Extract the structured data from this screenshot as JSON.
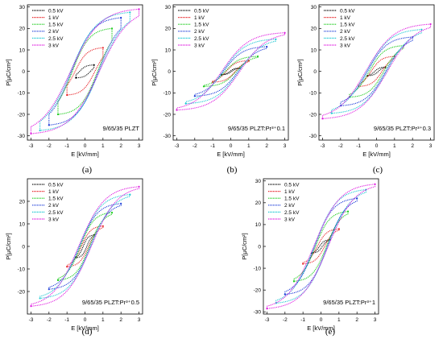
{
  "figure": {
    "panel_letters": [
      "(a)",
      "(b)",
      "(c)",
      "(d)",
      "(e)"
    ]
  },
  "colors": {
    "0.5 kV": "#111111",
    "1 kV": "#e8282c",
    "1.5 kV": "#1fcc1f",
    "2 kV": "#1f3fd8",
    "2.5 kV": "#22c9d4",
    "3 kV": "#e020e0"
  },
  "chart_data": [
    {
      "type": "line",
      "annotation": "9/65/35 PLZT",
      "xlabel": "E [kV/mm]",
      "ylabel": "P[μC/cm²]",
      "xlim": [
        -3.2,
        3.2
      ],
      "ylim": [
        -32,
        31
      ],
      "xticks": [
        -3,
        -2,
        -1,
        0,
        1,
        2,
        3
      ],
      "yticks": [
        -30,
        -20,
        -10,
        0,
        10,
        20,
        30
      ],
      "legend_position": "top-left",
      "series": [
        {
          "name": "0.5 kV",
          "Emax": 0.5,
          "Pmax": 3,
          "Pr": 2,
          "Ec": 0.3
        },
        {
          "name": "1 kV",
          "Emax": 1,
          "Pmax": 11,
          "Pr": 9,
          "Ec": 0.55
        },
        {
          "name": "1.5 kV",
          "Emax": 1.5,
          "Pmax": 20,
          "Pr": 16,
          "Ec": 0.7
        },
        {
          "name": "2 kV",
          "Emax": 2,
          "Pmax": 25,
          "Pr": 22,
          "Ec": 0.75
        },
        {
          "name": "2.5 kV",
          "Emax": 2.5,
          "Pmax": 27.5,
          "Pr": 24,
          "Ec": 0.8
        },
        {
          "name": "3 kV",
          "Emax": 3,
          "Pmax": 29,
          "Pr": 25,
          "Ec": 0.8
        }
      ]
    },
    {
      "type": "line",
      "annotation": "9/65/35 PLZT:Pr³⁺0.1",
      "xlabel": "E [kV/mm]",
      "ylabel": "P[μC/cm²]",
      "xlim": [
        -3.2,
        3.2
      ],
      "ylim": [
        -32,
        31
      ],
      "xticks": [
        -3,
        -2,
        -1,
        0,
        1,
        2,
        3
      ],
      "yticks": [
        -30,
        -20,
        -10,
        0,
        10,
        20,
        30
      ],
      "legend_position": "top-left",
      "series": [
        {
          "name": "0.5 kV",
          "Emax": 0.5,
          "Pmax": 1.5,
          "Pr": 0.3,
          "Ec": 0.05
        },
        {
          "name": "1 kV",
          "Emax": 1,
          "Pmax": 5,
          "Pr": 2,
          "Ec": 0.25
        },
        {
          "name": "1.5 kV",
          "Emax": 1.5,
          "Pmax": 7,
          "Pr": 3.5,
          "Ec": 0.3
        },
        {
          "name": "2 kV",
          "Emax": 2,
          "Pmax": 11.5,
          "Pr": 5.5,
          "Ec": 0.4
        },
        {
          "name": "2.5 kV",
          "Emax": 2.5,
          "Pmax": 15,
          "Pr": 7.5,
          "Ec": 0.45
        },
        {
          "name": "3 kV",
          "Emax": 3,
          "Pmax": 18,
          "Pr": 9,
          "Ec": 0.5
        }
      ]
    },
    {
      "type": "line",
      "annotation": "9/65/35 PLZT:Pr³⁺0.3",
      "xlabel": "E [kV/mm]",
      "ylabel": "P[μC/cm²]",
      "xlim": [
        -3.2,
        3.2
      ],
      "ylim": [
        -32,
        31
      ],
      "xticks": [
        -3,
        -2,
        -1,
        0,
        1,
        2,
        3
      ],
      "yticks": [
        -30,
        -20,
        -10,
        0,
        10,
        20,
        30
      ],
      "legend_position": "top-left",
      "series": [
        {
          "name": "0.5 kV",
          "Emax": 0.5,
          "Pmax": 2,
          "Pr": 0.5,
          "Ec": 0.1
        },
        {
          "name": "1 kV",
          "Emax": 1,
          "Pmax": 7,
          "Pr": 3,
          "Ec": 0.3
        },
        {
          "name": "1.5 kV",
          "Emax": 1.5,
          "Pmax": 12,
          "Pr": 6,
          "Ec": 0.4
        },
        {
          "name": "2 kV",
          "Emax": 2,
          "Pmax": 16,
          "Pr": 10,
          "Ec": 0.5
        },
        {
          "name": "2.5 kV",
          "Emax": 2.5,
          "Pmax": 19.5,
          "Pr": 12,
          "Ec": 0.55
        },
        {
          "name": "3 kV",
          "Emax": 3,
          "Pmax": 22,
          "Pr": 14,
          "Ec": 0.6
        }
      ]
    },
    {
      "type": "line",
      "annotation": "9/65/35 PLZT:Pr³⁺0.5",
      "xlabel": "E [kV/mm]",
      "ylabel": "P[μC/cm²]",
      "xlim": [
        -3.2,
        3.2
      ],
      "ylim": [
        -30,
        30
      ],
      "xticks": [
        -3,
        -2,
        -1,
        0,
        1,
        2,
        3
      ],
      "yticks": [
        -20,
        -10,
        0,
        10,
        20
      ],
      "legend_position": "top-left",
      "series": [
        {
          "name": "0.5 kV",
          "Emax": 0.5,
          "Pmax": 5,
          "Pr": 1,
          "Ec": 0.1
        },
        {
          "name": "1 kV",
          "Emax": 1,
          "Pmax": 9,
          "Pr": 2,
          "Ec": 0.2
        },
        {
          "name": "1.5 kV",
          "Emax": 1.5,
          "Pmax": 15,
          "Pr": 4,
          "Ec": 0.25
        },
        {
          "name": "2 kV",
          "Emax": 2,
          "Pmax": 19,
          "Pr": 5,
          "Ec": 0.3
        },
        {
          "name": "2.5 kV",
          "Emax": 2.5,
          "Pmax": 23,
          "Pr": 6,
          "Ec": 0.32
        },
        {
          "name": "3 kV",
          "Emax": 3,
          "Pmax": 26.5,
          "Pr": 7,
          "Ec": 0.35
        }
      ]
    },
    {
      "type": "line",
      "annotation": "9/65/35 PLZT:Pr³⁺1",
      "xlabel": "E [kV/mm]",
      "ylabel": "P[μC/cm²]",
      "xlim": [
        -3.2,
        3.2
      ],
      "ylim": [
        -31,
        31
      ],
      "xticks": [
        -3,
        -2,
        -1,
        0,
        1,
        2,
        3
      ],
      "yticks": [
        -30,
        -20,
        -10,
        0,
        10,
        20,
        30
      ],
      "legend_position": "top-left",
      "series": [
        {
          "name": "0.5 kV",
          "Emax": 0.5,
          "Pmax": 3,
          "Pr": 0.5,
          "Ec": 0.08
        },
        {
          "name": "1 kV",
          "Emax": 1,
          "Pmax": 8,
          "Pr": 1.5,
          "Ec": 0.2
        },
        {
          "name": "1.5 kV",
          "Emax": 1.5,
          "Pmax": 16,
          "Pr": 4,
          "Ec": 0.3
        },
        {
          "name": "2 kV",
          "Emax": 2,
          "Pmax": 22,
          "Pr": 6,
          "Ec": 0.35
        },
        {
          "name": "2.5 kV",
          "Emax": 2.5,
          "Pmax": 26,
          "Pr": 7,
          "Ec": 0.38
        },
        {
          "name": "3 kV",
          "Emax": 3,
          "Pmax": 28.5,
          "Pr": 8,
          "Ec": 0.4
        }
      ]
    }
  ]
}
